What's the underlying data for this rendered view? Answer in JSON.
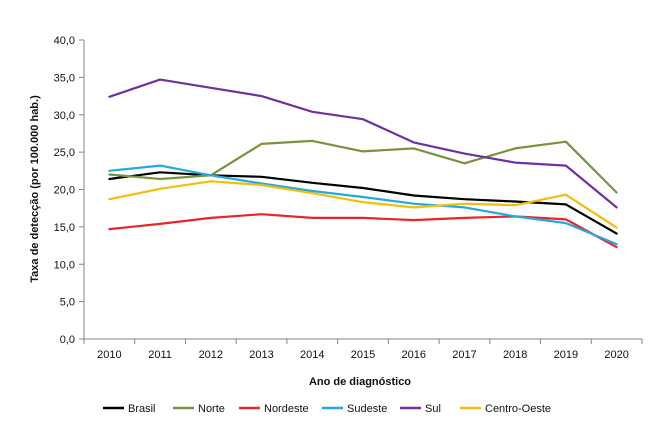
{
  "chart_data": {
    "type": "line",
    "xlabel": "Ano de diagnóstico",
    "ylabel": "Taxa de detecção (por 100.000 hab.)",
    "categories": [
      "2010",
      "2011",
      "2012",
      "2013",
      "2014",
      "2015",
      "2016",
      "2017",
      "2018",
      "2019",
      "2020"
    ],
    "ylim": [
      0,
      40
    ],
    "yticks": [
      "0,0",
      "5,0",
      "10,0",
      "15,0",
      "20,0",
      "25,0",
      "30,0",
      "35,0",
      "40,0"
    ],
    "grid": false,
    "legend_position": "bottom",
    "series": [
      {
        "name": "Brasil",
        "color": "#000000",
        "values": [
          21.4,
          22.3,
          21.9,
          21.7,
          20.9,
          20.2,
          19.2,
          18.7,
          18.4,
          18.0,
          14.1
        ]
      },
      {
        "name": "Norte",
        "color": "#77933c",
        "values": [
          22.0,
          21.4,
          21.9,
          26.1,
          26.5,
          25.1,
          25.5,
          23.5,
          25.5,
          26.4,
          19.6
        ]
      },
      {
        "name": "Nordeste",
        "color": "#e8262a",
        "values": [
          14.7,
          15.4,
          16.2,
          16.7,
          16.2,
          16.2,
          15.9,
          16.2,
          16.4,
          16.0,
          12.3
        ]
      },
      {
        "name": "Sudeste",
        "color": "#22aae0",
        "values": [
          22.5,
          23.2,
          21.9,
          20.8,
          19.8,
          19.0,
          18.1,
          17.6,
          16.4,
          15.5,
          12.7
        ]
      },
      {
        "name": "Sul",
        "color": "#7030a0",
        "values": [
          32.4,
          34.7,
          33.6,
          32.5,
          30.4,
          29.4,
          26.3,
          24.8,
          23.6,
          23.2,
          17.6
        ]
      },
      {
        "name": "Centro-Oeste",
        "color": "#f5bc0a",
        "values": [
          18.7,
          20.1,
          21.1,
          20.6,
          19.5,
          18.3,
          17.6,
          18.1,
          17.9,
          19.3,
          14.9
        ]
      }
    ]
  }
}
